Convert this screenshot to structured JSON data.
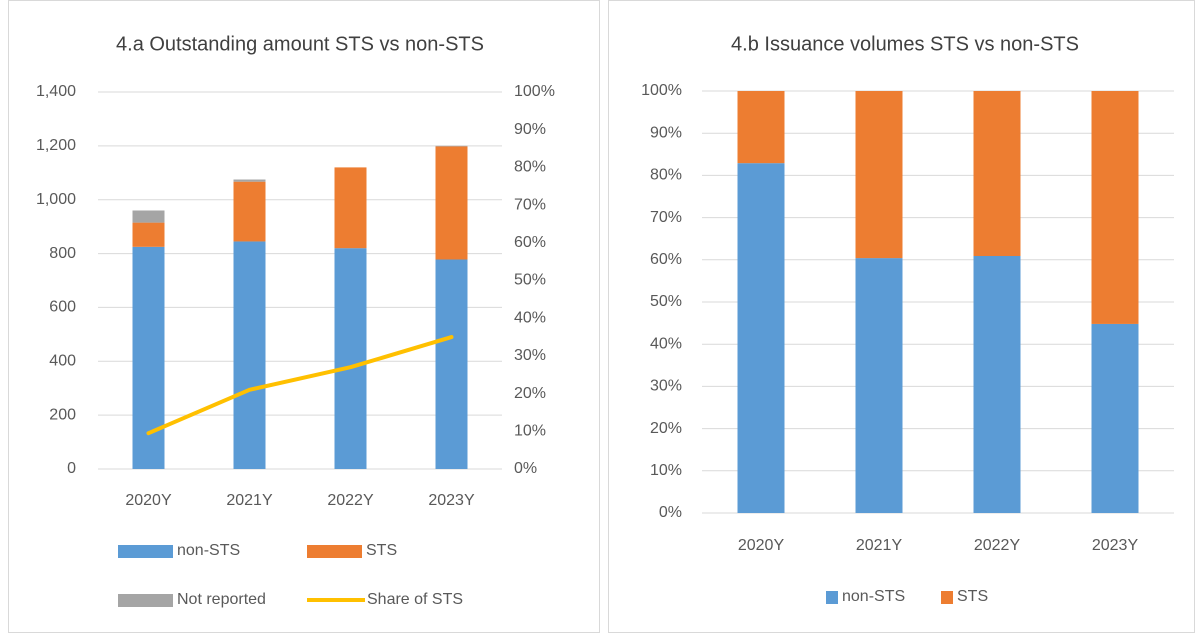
{
  "chart_data": [
    {
      "type": "bar",
      "stacked": true,
      "title": "4.a Outstanding amount  STS vs non-STS",
      "categories": [
        "2020Y",
        "2021Y",
        "2022Y",
        "2023Y"
      ],
      "series": [
        {
          "name": "non-STS",
          "color": "#5b9bd5",
          "values": [
            825,
            845,
            820,
            778
          ]
        },
        {
          "name": "STS",
          "color": "#ed7d31",
          "values": [
            90,
            222,
            300,
            420
          ]
        },
        {
          "name": "Not reported",
          "color": "#a5a5a5",
          "values": [
            45,
            8,
            0,
            2
          ]
        },
        {
          "name": "Share of STS",
          "color": "#ffc000",
          "type": "line",
          "axis": "y2",
          "values": [
            9.5,
            21,
            27,
            35
          ]
        }
      ],
      "ylim": [
        0,
        1400
      ],
      "yticks": [
        0,
        200,
        400,
        600,
        800,
        {
          "value": 1000,
          "label": "1,000"
        },
        {
          "value": 1200,
          "label": "1,200"
        },
        {
          "value": 1400,
          "label": "1,400"
        }
      ],
      "y2lim": [
        0,
        100
      ],
      "y2ticks": [
        {
          "value": 0,
          "label": "0%"
        },
        {
          "value": 10,
          "label": "10%"
        },
        {
          "value": 20,
          "label": "20%"
        },
        {
          "value": 30,
          "label": "30%"
        },
        {
          "value": 40,
          "label": "40%"
        },
        {
          "value": 50,
          "label": "50%"
        },
        {
          "value": 60,
          "label": "60%"
        },
        {
          "value": 70,
          "label": "70%"
        },
        {
          "value": 80,
          "label": "80%"
        },
        {
          "value": 90,
          "label": "90%"
        },
        {
          "value": 100,
          "label": "100%"
        }
      ],
      "grid": true,
      "legend": "bottom"
    },
    {
      "type": "bar",
      "stacked": true,
      "title": "4.b Issuance volumes STS vs non-STS",
      "categories": [
        "2020Y",
        "2021Y",
        "2022Y",
        "2023Y"
      ],
      "series": [
        {
          "name": "non-STS",
          "color": "#5b9bd5",
          "values": [
            82.9,
            60.4,
            60.9,
            44.8
          ]
        },
        {
          "name": "STS",
          "color": "#ed7d31",
          "values": [
            17.1,
            39.6,
            39.1,
            55.2
          ]
        }
      ],
      "ylim": [
        0,
        100
      ],
      "yticks": [
        {
          "value": 0,
          "label": "0%"
        },
        {
          "value": 10,
          "label": "10%"
        },
        {
          "value": 20,
          "label": "20%"
        },
        {
          "value": 30,
          "label": "30%"
        },
        {
          "value": 40,
          "label": "40%"
        },
        {
          "value": 50,
          "label": "50%"
        },
        {
          "value": 60,
          "label": "60%"
        },
        {
          "value": 70,
          "label": "70%"
        },
        {
          "value": 80,
          "label": "80%"
        },
        {
          "value": 90,
          "label": "90%"
        },
        {
          "value": 100,
          "label": "100%"
        }
      ],
      "grid": true,
      "legend": "bottom"
    }
  ]
}
